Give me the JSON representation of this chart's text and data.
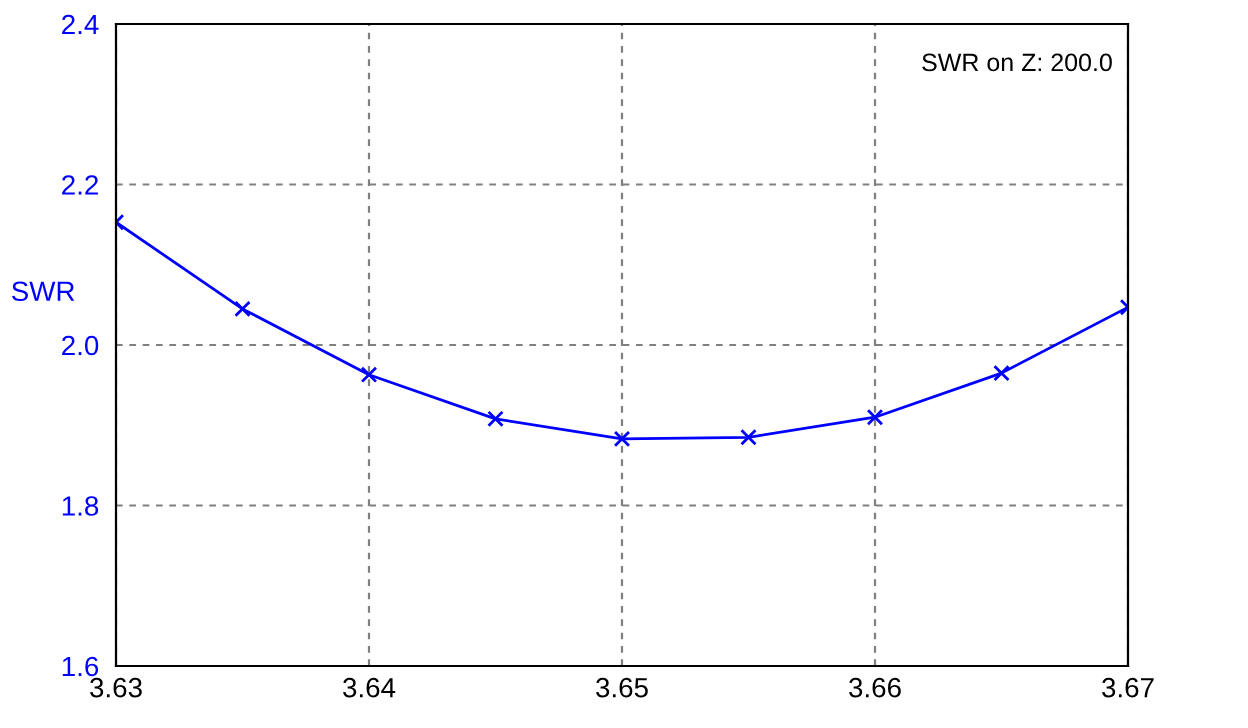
{
  "chart_data": {
    "type": "line",
    "ylabel": "SWR",
    "x": [
      3.63,
      3.635,
      3.64,
      3.645,
      3.65,
      3.655,
      3.66,
      3.665,
      3.67
    ],
    "series": [
      {
        "color": "#0000ff",
        "values": [
          2.153,
          2.045,
          1.963,
          1.908,
          1.883,
          1.885,
          1.91,
          1.965,
          2.047
        ]
      }
    ],
    "xlim": [
      3.63,
      3.67
    ],
    "xticks": [
      3.63,
      3.64,
      3.65,
      3.66,
      3.67
    ],
    "ylim": [
      1.6,
      2.4
    ],
    "yticks": [
      1.6,
      1.8,
      {
        "value": 2.0,
        "label": "2.0"
      },
      2.2,
      2.4
    ],
    "annotations": [
      "SWR on Z: 200.0"
    ],
    "grid": true,
    "marker": "cross",
    "line_style": "solid"
  }
}
